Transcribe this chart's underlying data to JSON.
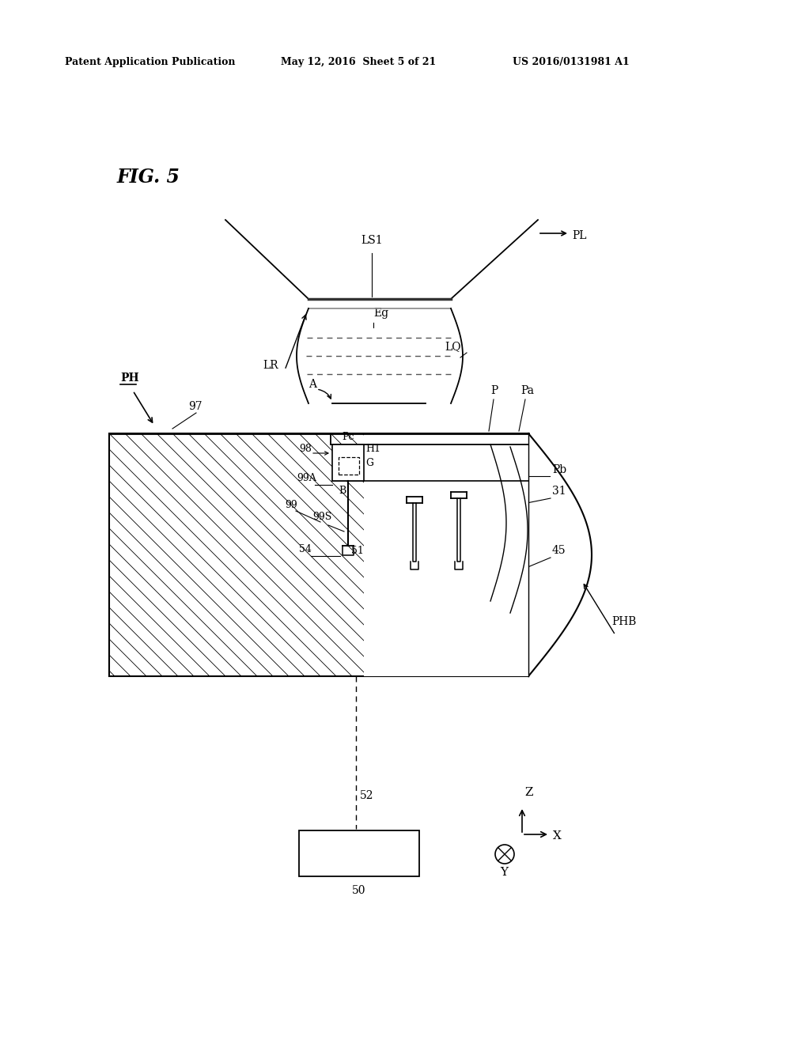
{
  "bg_color": "#ffffff",
  "header_left": "Patent Application Publication",
  "header_center": "May 12, 2016  Sheet 5 of 21",
  "header_right": "US 2016/0131981 A1",
  "fig_label": "FIG. 5",
  "black": "#000000"
}
